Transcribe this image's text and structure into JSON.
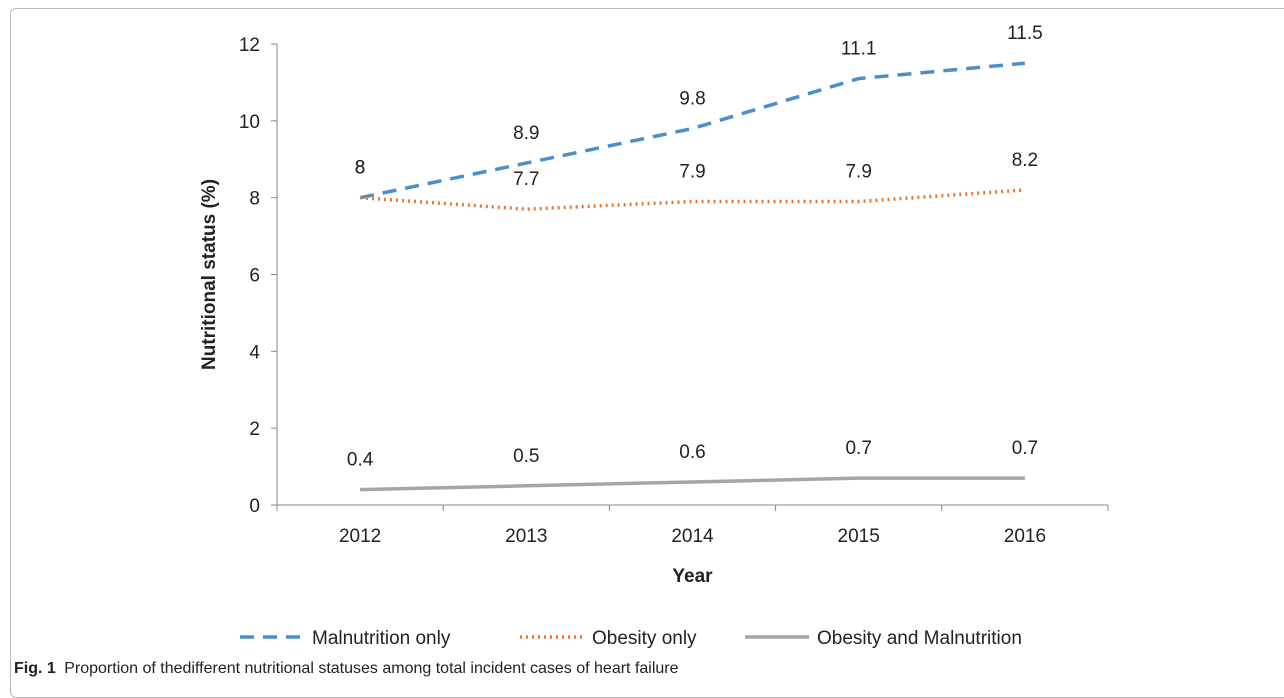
{
  "chart_data": {
    "type": "line",
    "categories": [
      "2012",
      "2013",
      "2014",
      "2015",
      "2016"
    ],
    "xlabel": "Year",
    "ylabel": "Nutritional status (%)",
    "ylim": [
      0,
      12
    ],
    "yticks": [
      "0",
      "2",
      "4",
      "6",
      "8",
      "10",
      "12"
    ],
    "grid": false,
    "legend_position": "bottom",
    "series": [
      {
        "name": "Malnutrition only",
        "values": [
          8,
          8.9,
          9.8,
          11.1,
          11.5
        ],
        "labels": [
          "8",
          "8.9",
          "9.8",
          "11.1",
          "11.5"
        ],
        "color": "#4a8fcb",
        "style": "dashed"
      },
      {
        "name": "Obesity only",
        "values": [
          8,
          7.7,
          7.9,
          7.9,
          8.2
        ],
        "labels": [
          "8",
          "7.7",
          "7.9",
          "7.9",
          "8.2"
        ],
        "color": "#e8772e",
        "style": "dotted"
      },
      {
        "name": "Obesity and Malnutrition",
        "values": [
          0.4,
          0.5,
          0.6,
          0.7,
          0.7
        ],
        "labels": [
          "0.4",
          "0.5",
          "0.6",
          "0.7",
          "0.7"
        ],
        "color": "#a5a5a5",
        "style": "solid"
      }
    ]
  },
  "caption": {
    "figure_label": "Fig. 1",
    "text": "Proportion of thedifferent nutritional statuses among total incident cases of heart failure"
  }
}
